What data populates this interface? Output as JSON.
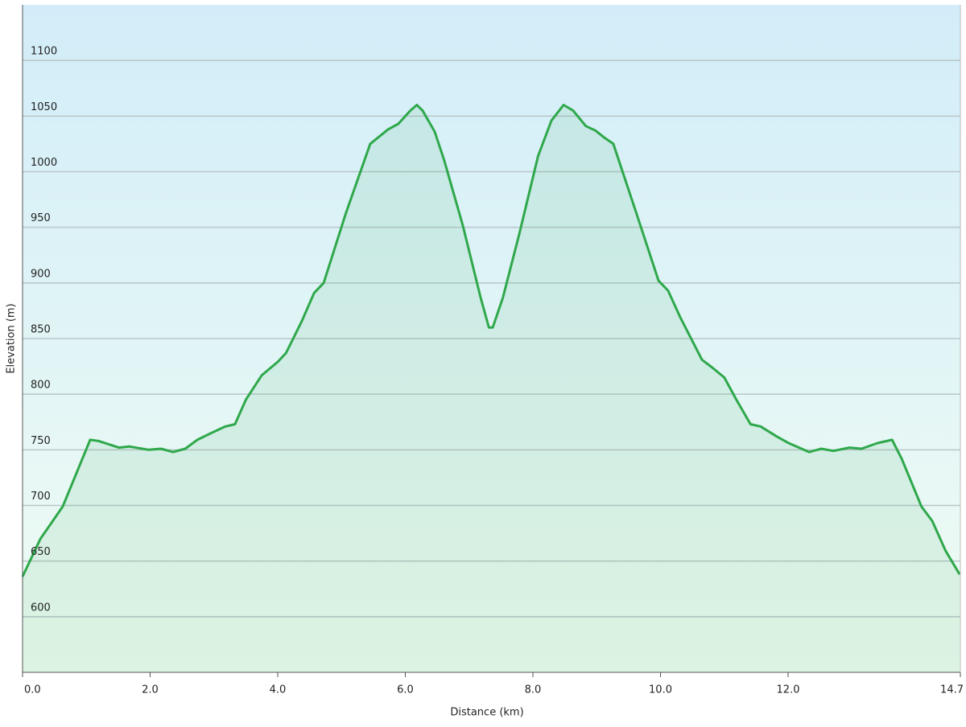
{
  "chart_data": {
    "type": "area",
    "x_label": "Distance  (km)",
    "y_label": "Elevation (m)",
    "x": [
      0,
      0.28,
      0.63,
      1.06,
      1.19,
      1.51,
      1.67,
      1.98,
      2.17,
      2.36,
      2.55,
      2.74,
      2.99,
      3.18,
      3.33,
      3.5,
      3.75,
      4.0,
      4.13,
      4.38,
      4.57,
      4.72,
      5.07,
      5.45,
      5.58,
      5.73,
      5.89,
      6.08,
      6.18,
      6.27,
      6.46,
      6.61,
      6.9,
      7.18,
      7.31,
      7.37,
      7.53,
      7.79,
      8.08,
      8.29,
      8.48,
      8.63,
      8.83,
      8.98,
      9.11,
      9.26,
      9.62,
      9.97,
      10.12,
      10.31,
      10.65,
      10.81,
      11.0,
      11.19,
      11.41,
      11.57,
      11.82,
      12.01,
      12.33,
      12.52,
      12.71,
      12.96,
      13.15,
      13.4,
      13.63,
      13.78,
      14.09,
      14.26,
      14.47,
      14.69
    ],
    "series": [
      {
        "color": "#2fa84b",
        "values": [
          636,
          670,
          699,
          759,
          758,
          752,
          753,
          750,
          751,
          748,
          751,
          759,
          766,
          771,
          773,
          795,
          817,
          829,
          837,
          866,
          891,
          900,
          963,
          1025,
          1031,
          1038,
          1043,
          1055,
          1060,
          1055,
          1036,
          1010,
          952,
          887,
          860,
          860,
          887,
          945,
          1014,
          1046,
          1060,
          1055,
          1041,
          1037,
          1031,
          1025,
          963,
          902,
          893,
          869,
          831,
          824,
          815,
          795,
          773,
          771,
          762,
          756,
          748,
          751,
          749,
          752,
          751,
          756,
          759,
          742,
          699,
          686,
          659,
          638
        ]
      }
    ],
    "xlim": [
      0,
      14.7
    ],
    "ylim": [
      550,
      1150
    ],
    "xticks": [
      {
        "value": 0,
        "label": "0.0"
      },
      {
        "value": 2,
        "label": "2.0"
      },
      {
        "value": 4,
        "label": "4.0"
      },
      {
        "value": 6,
        "label": "6.0"
      },
      {
        "value": 8,
        "label": "8.0"
      },
      {
        "value": 10,
        "label": "10.0"
      },
      {
        "value": 12,
        "label": "12.0"
      },
      14.7
    ],
    "yticks": [
      600,
      650,
      700,
      750,
      800,
      850,
      900,
      950,
      1000,
      1050,
      1100
    ],
    "grid": true
  }
}
